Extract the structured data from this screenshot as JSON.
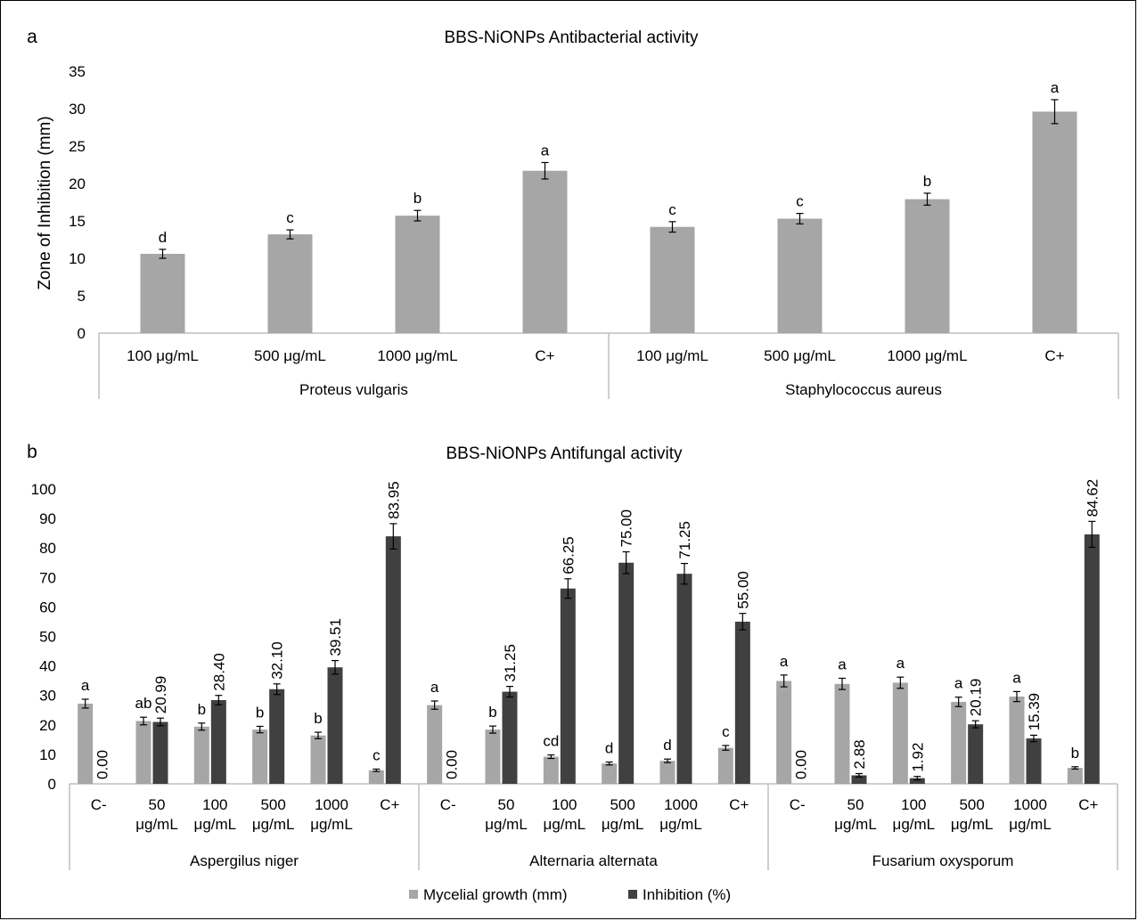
{
  "chart_data": [
    {
      "panel_label": "a",
      "type": "bar",
      "title": "BBS-NiONPs Antibacterial activity",
      "ylabel": "Zone of Inhibition (mm)",
      "ylim": [
        0,
        35
      ],
      "yticks": [
        "0",
        "5",
        "10",
        "15",
        "20",
        "25",
        "30",
        "35"
      ],
      "groups": [
        {
          "name": "Proteus vulgaris",
          "categories": [
            "100 μg/mL",
            "500 μg/mL",
            "1000 μg/mL",
            "C+"
          ],
          "values": [
            10.6,
            13.2,
            15.7,
            21.7
          ],
          "errors": [
            0.6,
            0.6,
            0.7,
            1.1
          ],
          "letters": [
            "d",
            "c",
            "b",
            "a"
          ]
        },
        {
          "name": "Staphylococcus aureus",
          "categories": [
            "100 μg/mL",
            "500 μg/mL",
            "1000 μg/mL",
            "C+"
          ],
          "values": [
            14.2,
            15.3,
            17.9,
            29.6
          ],
          "errors": [
            0.7,
            0.7,
            0.8,
            1.6
          ],
          "letters": [
            "c",
            "c",
            "b",
            "a"
          ]
        }
      ],
      "color": "#a6a6a6",
      "grid": false
    },
    {
      "panel_label": "b",
      "type": "bar",
      "title": "BBS-NiONPs Antifungal activity",
      "ylim": [
        0,
        100
      ],
      "yticks": [
        "0",
        "10",
        "20",
        "30",
        "40",
        "50",
        "60",
        "70",
        "80",
        "90",
        "100"
      ],
      "series": [
        {
          "name": "Mycelial growth (mm)",
          "color": "#a6a6a6"
        },
        {
          "name": "Inhibition (%)",
          "color": "#404040"
        }
      ],
      "legend_position": "bottom",
      "grid": false,
      "groups": [
        {
          "name": "Aspergilus niger",
          "categories": [
            [
              "C-"
            ],
            [
              "50",
              "μg/mL"
            ],
            [
              "100",
              "μg/mL"
            ],
            [
              "500",
              "μg/mL"
            ],
            [
              "1000",
              "μg/mL"
            ],
            [
              "C+"
            ]
          ],
          "growth": [
            27.2,
            21.3,
            19.4,
            18.4,
            16.4,
            4.6
          ],
          "growth_err": [
            1.5,
            1.3,
            1.2,
            1.1,
            1.1,
            0.4
          ],
          "letters": [
            "a",
            "ab",
            "b",
            "b",
            "b",
            "c"
          ],
          "inhibition": [
            0.0,
            20.99,
            28.4,
            32.1,
            39.51,
            83.95
          ],
          "inhibition_labels": [
            "0.00",
            "20.99",
            "28.40",
            "32.10",
            "39.51",
            "83.95"
          ],
          "inhibition_err": [
            0.0,
            1.3,
            1.6,
            1.8,
            2.3,
            4.3
          ]
        },
        {
          "name": "Alternaria alternata",
          "categories": [
            [
              "C-"
            ],
            [
              "50",
              "μg/mL"
            ],
            [
              "100",
              "μg/mL"
            ],
            [
              "500",
              "μg/mL"
            ],
            [
              "1000",
              "μg/mL"
            ],
            [
              "C+"
            ]
          ],
          "growth": [
            26.7,
            18.4,
            9.2,
            6.9,
            7.8,
            12.2
          ],
          "growth_err": [
            1.4,
            1.2,
            0.6,
            0.5,
            0.6,
            0.8
          ],
          "letters": [
            "a",
            "b",
            "cd",
            "d",
            "d",
            "c"
          ],
          "inhibition": [
            0.0,
            31.25,
            66.25,
            75.0,
            71.25,
            55.0
          ],
          "inhibition_labels": [
            "0.00",
            "31.25",
            "66.25",
            "75.00",
            "71.25",
            "55.00"
          ],
          "inhibition_err": [
            0.0,
            1.8,
            3.3,
            3.7,
            3.5,
            2.8
          ]
        },
        {
          "name": "Fusarium oxysporum",
          "categories": [
            [
              "C-"
            ],
            [
              "50",
              "μg/mL"
            ],
            [
              "100",
              "μg/mL"
            ],
            [
              "500",
              "μg/mL"
            ],
            [
              "1000",
              "μg/mL"
            ],
            [
              "C+"
            ]
          ],
          "growth": [
            34.9,
            33.9,
            34.3,
            27.8,
            29.6,
            5.4
          ],
          "growth_err": [
            2.0,
            1.9,
            1.9,
            1.6,
            1.7,
            0.4
          ],
          "letters": [
            "a",
            "a",
            "a",
            "a",
            "a",
            "b"
          ],
          "inhibition": [
            0.0,
            2.88,
            1.92,
            20.19,
            15.39,
            84.62
          ],
          "inhibition_labels": [
            "0.00",
            "2.88",
            "1.92",
            "20.19",
            "15.39",
            "84.62"
          ],
          "inhibition_err": [
            0.0,
            0.6,
            0.6,
            1.2,
            1.1,
            4.4
          ]
        }
      ]
    }
  ]
}
